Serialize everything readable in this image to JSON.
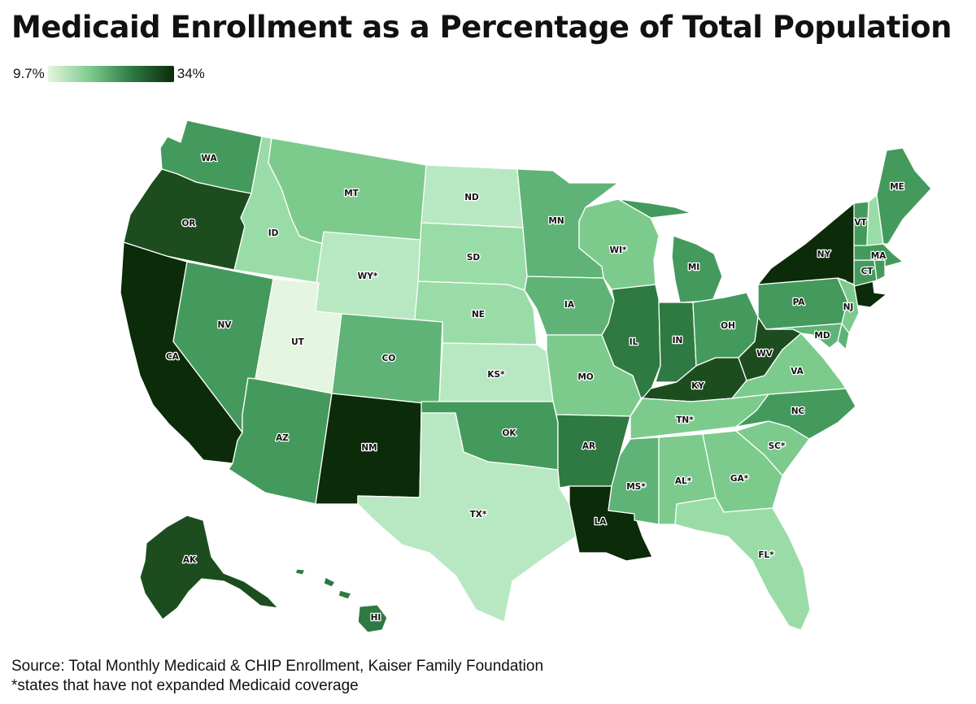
{
  "title": "Medicaid Enrollment as a Percentage of Total Population",
  "legend": {
    "min_label": "9.7%",
    "max_label": "34%",
    "min_color": "#e5f5e0",
    "max_color": "#0a2a08"
  },
  "source": {
    "line1": "Source: Total Monthly Medicaid & CHIP Enrollment, Kaiser Family Foundation",
    "line2": "*states that have not expanded Medicaid coverage"
  },
  "palette": {
    "c1": "#e4f5e0",
    "c2": "#b8e8c2",
    "c3": "#9adca7",
    "c4": "#7ccb8d",
    "c5": "#5fb377",
    "c6": "#449a5c",
    "c7": "#2e7a42",
    "c8": "#1d4d1f",
    "c9": "#0b2b09"
  },
  "states": [
    {
      "abbr": "WA",
      "label": "WA",
      "level": "c6"
    },
    {
      "abbr": "OR",
      "label": "OR",
      "level": "c8"
    },
    {
      "abbr": "CA",
      "label": "CA",
      "level": "c9"
    },
    {
      "abbr": "ID",
      "label": "ID",
      "level": "c3"
    },
    {
      "abbr": "NV",
      "label": "NV",
      "level": "c6"
    },
    {
      "abbr": "MT",
      "label": "MT",
      "level": "c4"
    },
    {
      "abbr": "WY",
      "label": "WY*",
      "level": "c2"
    },
    {
      "abbr": "UT",
      "label": "UT",
      "level": "c1"
    },
    {
      "abbr": "AZ",
      "label": "AZ",
      "level": "c6"
    },
    {
      "abbr": "CO",
      "label": "CO",
      "level": "c5"
    },
    {
      "abbr": "NM",
      "label": "NM",
      "level": "c9"
    },
    {
      "abbr": "ND",
      "label": "ND",
      "level": "c2"
    },
    {
      "abbr": "SD",
      "label": "SD",
      "level": "c3"
    },
    {
      "abbr": "NE",
      "label": "NE",
      "level": "c3"
    },
    {
      "abbr": "KS",
      "label": "KS*",
      "level": "c2"
    },
    {
      "abbr": "OK",
      "label": "OK",
      "level": "c6"
    },
    {
      "abbr": "TX",
      "label": "TX*",
      "level": "c2"
    },
    {
      "abbr": "MN",
      "label": "MN",
      "level": "c5"
    },
    {
      "abbr": "IA",
      "label": "IA",
      "level": "c5"
    },
    {
      "abbr": "MO",
      "label": "MO",
      "level": "c4"
    },
    {
      "abbr": "AR",
      "label": "AR",
      "level": "c7"
    },
    {
      "abbr": "LA",
      "label": "LA",
      "level": "c9"
    },
    {
      "abbr": "WI",
      "label": "WI*",
      "level": "c4"
    },
    {
      "abbr": "IL",
      "label": "IL",
      "level": "c7"
    },
    {
      "abbr": "MI",
      "label": "MI",
      "level": "c6"
    },
    {
      "abbr": "IN",
      "label": "IN",
      "level": "c7"
    },
    {
      "abbr": "OH",
      "label": "OH",
      "level": "c6"
    },
    {
      "abbr": "KY",
      "label": "KY",
      "level": "c8"
    },
    {
      "abbr": "TN",
      "label": "TN*",
      "level": "c4"
    },
    {
      "abbr": "MS",
      "label": "MS*",
      "level": "c5"
    },
    {
      "abbr": "AL",
      "label": "AL*",
      "level": "c4"
    },
    {
      "abbr": "GA",
      "label": "GA*",
      "level": "c4"
    },
    {
      "abbr": "FL",
      "label": "FL*",
      "level": "c3"
    },
    {
      "abbr": "SC",
      "label": "SC*",
      "level": "c4"
    },
    {
      "abbr": "NC",
      "label": "NC",
      "level": "c6"
    },
    {
      "abbr": "VA",
      "label": "VA",
      "level": "c4"
    },
    {
      "abbr": "WV",
      "label": "WV",
      "level": "c8"
    },
    {
      "abbr": "PA",
      "label": "PA",
      "level": "c6"
    },
    {
      "abbr": "NY",
      "label": "NY",
      "level": "c9"
    },
    {
      "abbr": "NJ",
      "label": "NJ",
      "level": "c4"
    },
    {
      "abbr": "MD",
      "label": "MD",
      "level": "c5"
    },
    {
      "abbr": "DE",
      "label": "",
      "level": "c5"
    },
    {
      "abbr": "CT",
      "label": "CT",
      "level": "c6"
    },
    {
      "abbr": "RI",
      "label": "",
      "level": "c6"
    },
    {
      "abbr": "MA",
      "label": "MA",
      "level": "c6"
    },
    {
      "abbr": "VT",
      "label": "VT",
      "level": "c6"
    },
    {
      "abbr": "NH",
      "label": "",
      "level": "c3"
    },
    {
      "abbr": "ME",
      "label": "ME",
      "level": "c6"
    },
    {
      "abbr": "AK",
      "label": "AK",
      "level": "c8"
    },
    {
      "abbr": "HI",
      "label": "HI",
      "level": "c7"
    }
  ]
}
